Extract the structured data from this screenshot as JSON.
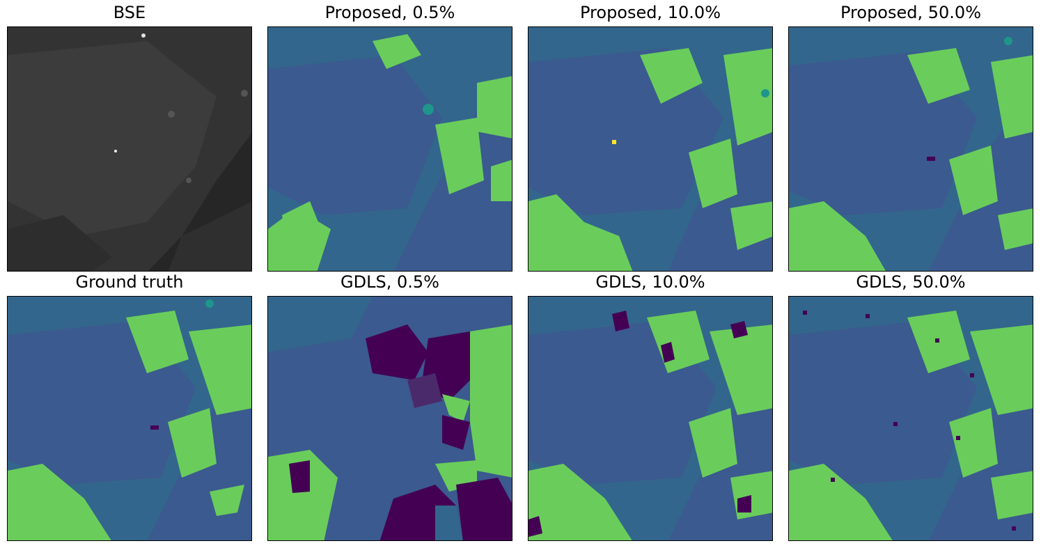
{
  "figure": {
    "panels": [
      {
        "id": "bse",
        "title": "BSE",
        "kind": "bse"
      },
      {
        "id": "proposed-0-5",
        "title": "Proposed, 0.5%",
        "kind": "segmentation"
      },
      {
        "id": "proposed-10",
        "title": "Proposed, 10.0%",
        "kind": "segmentation"
      },
      {
        "id": "proposed-50",
        "title": "Proposed, 50.0%",
        "kind": "segmentation"
      },
      {
        "id": "ground-truth",
        "title": "Ground truth",
        "kind": "segmentation"
      },
      {
        "id": "gdls-0-5",
        "title": "GDLS, 0.5%",
        "kind": "segmentation"
      },
      {
        "id": "gdls-10",
        "title": "GDLS, 10.0%",
        "kind": "segmentation"
      },
      {
        "id": "gdls-50",
        "title": "GDLS, 50.0%",
        "kind": "segmentation"
      }
    ],
    "colors": {
      "background_phase": "#3b5a8f",
      "secondary_phase": "#33668c",
      "green_phase": "#6acd5b",
      "teal_phase": "#1f968b",
      "dark_phase": "#440154",
      "yellow_phase": "#fde725",
      "bse_dark": "#222222",
      "bse_mid": "#3a3a3a"
    }
  }
}
